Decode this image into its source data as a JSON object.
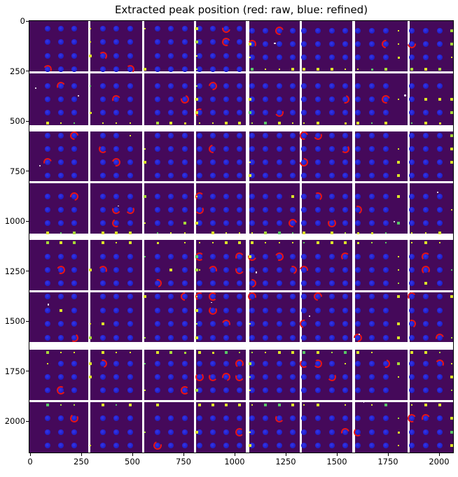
{
  "figure": {
    "title": "Extracted peak position (red: raw, blue: refined)"
  },
  "chart_data": {
    "type": "heatmap",
    "title": "Extracted peak position (red: raw, blue: refined)",
    "xlabel": "",
    "ylabel": "",
    "x_range": [
      0,
      2069
    ],
    "y_range": [
      0,
      2163
    ],
    "x_ticks": [
      0,
      250,
      500,
      750,
      1000,
      1250,
      1500,
      1750,
      2000
    ],
    "y_ticks": [
      0,
      250,
      500,
      750,
      1000,
      1250,
      1500,
      1750,
      2000
    ],
    "grid": false,
    "legend_position": "in-title",
    "colormap": "viridis",
    "series": [
      {
        "name": "raw peak positions",
        "marker": "open red circle",
        "color": "#e81414"
      },
      {
        "name": "refined peak positions",
        "marker": "filled blue circle",
        "color": "#2424d2"
      },
      {
        "name": "image peak intensities",
        "marker": "small yellow cross",
        "color": "#dce32a"
      }
    ],
    "colors": {
      "panel_background": "#45095a",
      "gap_white": "#ffffff",
      "refined_dot_core": "#3636ea",
      "refined_dot_mid": "#2222cd",
      "refined_dot_rim": "#1b1ba4",
      "raw_ring": "#e81414",
      "peak_yellow": "#dce32a",
      "peak_yellow_green": "#a8d93a",
      "peak_green": "#58c765",
      "speck_white": "#ffffff",
      "axis_text": "#000000"
    },
    "detector": {
      "panel_columns": 8,
      "panel_rows": 8,
      "col_ranges": [
        [
          0,
          84
        ],
        [
          87,
          161
        ],
        [
          164,
          235
        ],
        [
          238,
          309
        ],
        [
          314,
          386
        ],
        [
          389,
          461
        ],
        [
          465,
          540
        ],
        [
          543,
          605
        ]
      ],
      "row_ranges": [
        [
          0,
          72
        ],
        [
          75,
          149
        ],
        [
          158,
          229
        ],
        [
          232,
          304
        ],
        [
          313,
          385
        ],
        [
          388,
          459
        ],
        [
          470,
          542
        ],
        [
          545,
          617
        ]
      ],
      "col_dot_offsets": [
        [
          26,
          45,
          64
        ],
        [
          18,
          37,
          57
        ],
        [
          19,
          38,
          58
        ],
        [
          5,
          24,
          43,
          62
        ],
        [
          4,
          23,
          43,
          62
        ],
        [
          3,
          23,
          43,
          62
        ],
        [
          4,
          24,
          44
        ],
        [
          3,
          23,
          43
        ]
      ],
      "row_dot_offsets_left": [
        {
          "blue": [
            11,
            30,
            50,
            69
          ]
        },
        {
          "blue": [
            18,
            37,
            56
          ],
          "yellow_bottom": 71
        },
        {
          "blue": [
            6,
            25,
            44,
            63
          ]
        },
        {
          "blue": [
            19,
            38,
            57
          ],
          "yellow_bottom": 71
        },
        {
          "yellow_top": 4,
          "blue": [
            24,
            43,
            62
          ]
        },
        {
          "blue": [
            6,
            26,
            45,
            65
          ]
        },
        {
          "yellow_top": 4,
          "blue": [
            20,
            39,
            58
          ]
        },
        {
          "yellow_top": 4,
          "blue": [
            23,
            43,
            62
          ]
        }
      ],
      "row_dot_offsets_right": [
        {
          "blue": [
            14,
            33,
            52
          ],
          "yellow_bottom": 69
        },
        {
          "blue": [
            18,
            37,
            56
          ],
          "yellow_bottom": 71
        },
        {
          "blue": [
            6,
            25,
            44,
            63
          ]
        },
        {
          "blue": [
            19,
            38,
            57
          ],
          "yellow_bottom": 71
        },
        {
          "yellow_top": 4,
          "blue": [
            24,
            43,
            62
          ]
        },
        {
          "blue": [
            6,
            26,
            45,
            65
          ]
        },
        {
          "yellow_top": 4,
          "blue": [
            20,
            39,
            58
          ]
        },
        {
          "yellow_top": 4,
          "blue": [
            23,
            43,
            62
          ]
        }
      ],
      "yellow_edge_columns": [
        {
          "col": 1,
          "offset": 0,
          "p": 0.35
        },
        {
          "col": 2,
          "offset": 1,
          "p": 0.5
        },
        {
          "col": 3,
          "offset": 1,
          "p": 0.45
        },
        {
          "col": 4,
          "offset": 1,
          "p": 0.45
        },
        {
          "col": 6,
          "offset": 62,
          "p": 0.75
        },
        {
          "col": 7,
          "offset": 60,
          "p": 0.6
        }
      ],
      "red_ring_probability": 0.11,
      "yellow_replace_probability": 0.02,
      "yellow_row_dot_probability": 0.92,
      "white_speck_count": 16
    }
  }
}
